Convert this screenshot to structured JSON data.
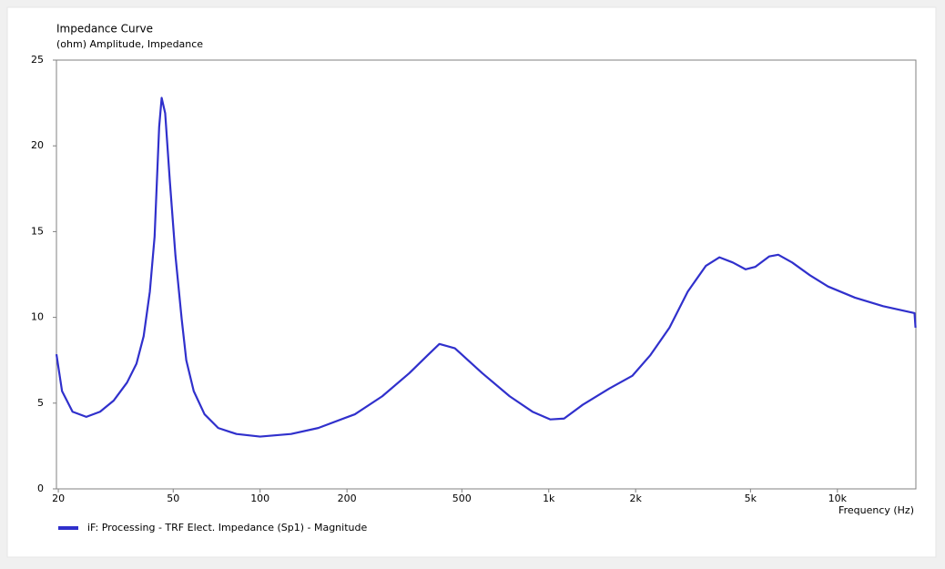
{
  "chart_data": {
    "type": "line",
    "title": "Impedance Curve",
    "subtitle": "(ohm)  Amplitude, Impedance",
    "x_label": "Frequency  (Hz)",
    "xscale": "log",
    "xlim": [
      19.7,
      18700
    ],
    "ylim": [
      0,
      25
    ],
    "xticks": [
      20,
      50,
      100,
      200,
      500,
      {
        "value": 1000,
        "label": "1k"
      },
      {
        "value": 2000,
        "label": "2k"
      },
      {
        "value": 5000,
        "label": "5k"
      },
      {
        "value": 10000,
        "label": "10k"
      }
    ],
    "yticks": [
      0,
      5,
      10,
      15,
      20,
      25
    ],
    "grid": false,
    "legend": "bottom-left",
    "x": [
      19.7,
      20.6,
      22.4,
      25,
      27.9,
      31.1,
      34.6,
      37.3,
      39.5,
      41.5,
      43.1,
      44.7,
      45.6,
      46.9,
      48.7,
      50.9,
      53.5,
      55.5,
      58.9,
      64.2,
      71.6,
      82.8,
      100,
      128,
      159,
      213,
      265,
      329,
      381,
      418,
      473,
      588,
      732,
      878,
      1013,
      1130,
      1310,
      1620,
      1950,
      2250,
      2620,
      3030,
      3500,
      3900,
      4340,
      4810,
      5200,
      5800,
      6240,
      6970,
      8040,
      9280,
      11500,
      14400,
      18500,
      18650
    ],
    "series": [
      {
        "name": "iF: Processing - TRF Elect. Impedance (Sp1) - Magnitude",
        "color": "#3030cc",
        "values": [
          7.85,
          5.7,
          4.5,
          4.2,
          4.5,
          5.15,
          6.2,
          7.3,
          8.9,
          11.5,
          14.7,
          21.1,
          22.8,
          21.9,
          17.9,
          13.6,
          9.9,
          7.5,
          5.7,
          4.35,
          3.55,
          3.2,
          3.05,
          3.2,
          3.55,
          4.35,
          5.4,
          6.75,
          7.8,
          8.45,
          8.2,
          6.75,
          5.4,
          4.5,
          4.05,
          4.1,
          4.9,
          5.85,
          6.6,
          7.8,
          9.4,
          11.5,
          13.0,
          13.5,
          13.2,
          12.8,
          12.95,
          13.55,
          13.65,
          13.2,
          12.45,
          11.8,
          11.15,
          10.65,
          10.25,
          9.4
        ]
      }
    ]
  }
}
